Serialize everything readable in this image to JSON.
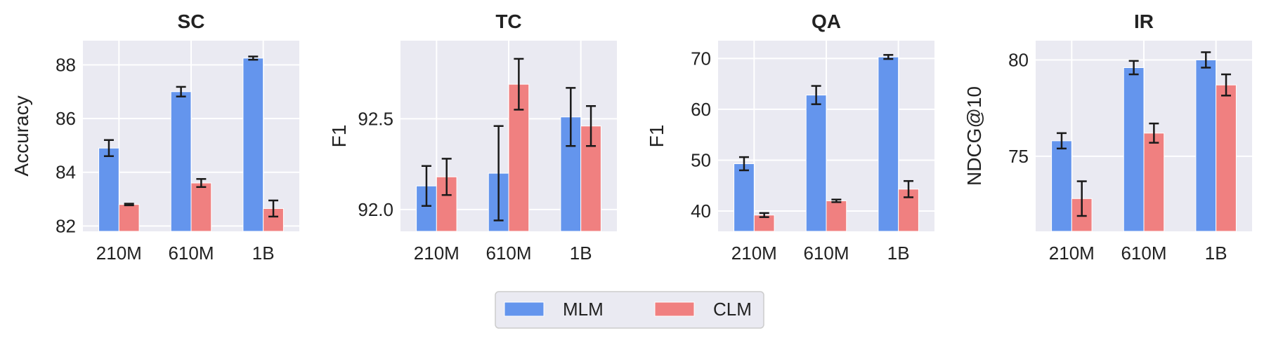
{
  "chart_data": [
    {
      "type": "bar",
      "title": "SC",
      "ylabel": "Accuracy",
      "xlabel": "",
      "categories": [
        "210M",
        "610M",
        "1B"
      ],
      "ylim": [
        81.8,
        88.9
      ],
      "yticks": [
        82,
        84,
        86,
        88
      ],
      "series": [
        {
          "name": "MLM",
          "values": [
            84.9,
            87.0,
            88.25
          ],
          "errors": [
            0.3,
            0.18,
            0.06
          ]
        },
        {
          "name": "CLM",
          "values": [
            82.8,
            83.6,
            82.65
          ],
          "errors": [
            0.03,
            0.15,
            0.3
          ]
        }
      ]
    },
    {
      "type": "bar",
      "title": "TC",
      "ylabel": "F1",
      "xlabel": "",
      "categories": [
        "210M",
        "610M",
        "1B"
      ],
      "ylim": [
        91.88,
        92.93
      ],
      "yticks": [
        92.0,
        92.5
      ],
      "series": [
        {
          "name": "MLM",
          "values": [
            92.13,
            92.2,
            92.51
          ],
          "errors": [
            0.11,
            0.26,
            0.16
          ]
        },
        {
          "name": "CLM",
          "values": [
            92.18,
            92.69,
            92.46
          ],
          "errors": [
            0.1,
            0.14,
            0.11
          ]
        }
      ]
    },
    {
      "type": "bar",
      "title": "QA",
      "ylabel": "F1",
      "xlabel": "",
      "categories": [
        "210M",
        "610M",
        "1B"
      ],
      "ylim": [
        36,
        73.5
      ],
      "yticks": [
        40,
        50,
        60,
        70
      ],
      "series": [
        {
          "name": "MLM",
          "values": [
            49.3,
            62.8,
            70.3
          ],
          "errors": [
            1.3,
            1.8,
            0.4
          ]
        },
        {
          "name": "CLM",
          "values": [
            39.2,
            42.0,
            44.3
          ],
          "errors": [
            0.4,
            0.25,
            1.6
          ]
        }
      ]
    },
    {
      "type": "bar",
      "title": "IR",
      "ylabel": "NDCG@10",
      "xlabel": "",
      "categories": [
        "210M",
        "610M",
        "1B"
      ],
      "ylim": [
        71.1,
        81.0
      ],
      "yticks": [
        75,
        80
      ],
      "series": [
        {
          "name": "MLM",
          "values": [
            75.8,
            79.6,
            80.0
          ],
          "errors": [
            0.4,
            0.35,
            0.4
          ]
        },
        {
          "name": "CLM",
          "values": [
            72.8,
            76.2,
            78.7
          ],
          "errors": [
            0.9,
            0.5,
            0.55
          ]
        }
      ]
    }
  ],
  "legend": {
    "placement": "bottom-center",
    "items": [
      "MLM",
      "CLM"
    ]
  },
  "colors": {
    "MLM": "#6495ED",
    "CLM": "#F08080",
    "plot_bg": "#EAEAF2",
    "grid": "#FFFFFF",
    "errorbar": "#1A1A1A"
  },
  "grid": true
}
